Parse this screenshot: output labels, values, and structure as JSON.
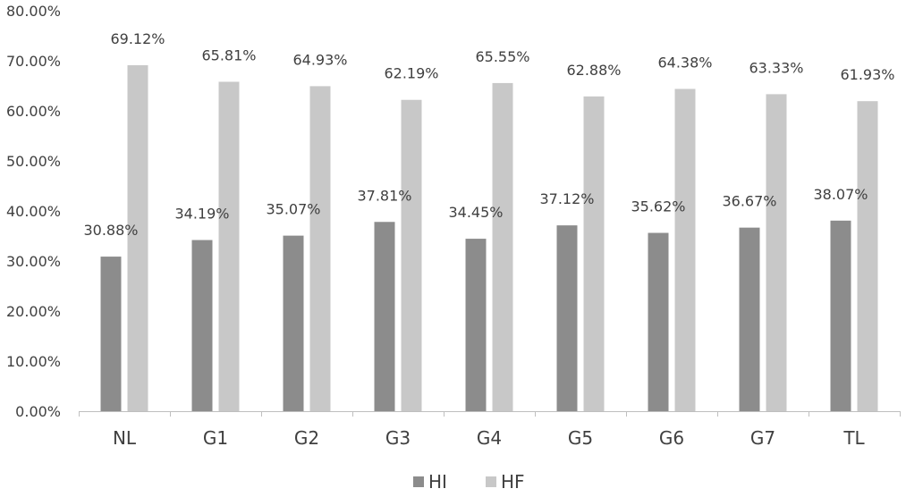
{
  "chart_data": {
    "type": "bar",
    "title": "",
    "xlabel": "",
    "ylabel": "",
    "categories": [
      "NL",
      "G1",
      "G2",
      "G3",
      "G4",
      "G5",
      "G6",
      "G7",
      "TL"
    ],
    "series": [
      {
        "name": "HI",
        "color": "#8c8c8c",
        "values": [
          30.88,
          34.19,
          35.07,
          37.81,
          34.45,
          37.12,
          35.62,
          36.67,
          38.07
        ],
        "labels": [
          "30.88%",
          "34.19%",
          "35.07%",
          "37.81%",
          "34.45%",
          "37.12%",
          "35.62%",
          "36.67%",
          "38.07%"
        ]
      },
      {
        "name": "HF",
        "color": "#c8c8c8",
        "values": [
          69.12,
          65.81,
          64.93,
          62.19,
          65.55,
          62.88,
          64.38,
          63.33,
          61.93
        ],
        "labels": [
          "69.12%",
          "65.81%",
          "64.93%",
          "62.19%",
          "65.55%",
          "62.88%",
          "64.38%",
          "63.33%",
          "61.93%"
        ]
      }
    ],
    "ylim": [
      0,
      80
    ],
    "yticks": [
      0,
      10,
      20,
      30,
      40,
      50,
      60,
      70,
      80
    ],
    "ytick_labels": [
      "0.00%",
      "10.00%",
      "20.00%",
      "30.00%",
      "40.00%",
      "50.00%",
      "60.00%",
      "70.00%",
      "80.00%"
    ],
    "grid": false,
    "legend": "bottom"
  }
}
